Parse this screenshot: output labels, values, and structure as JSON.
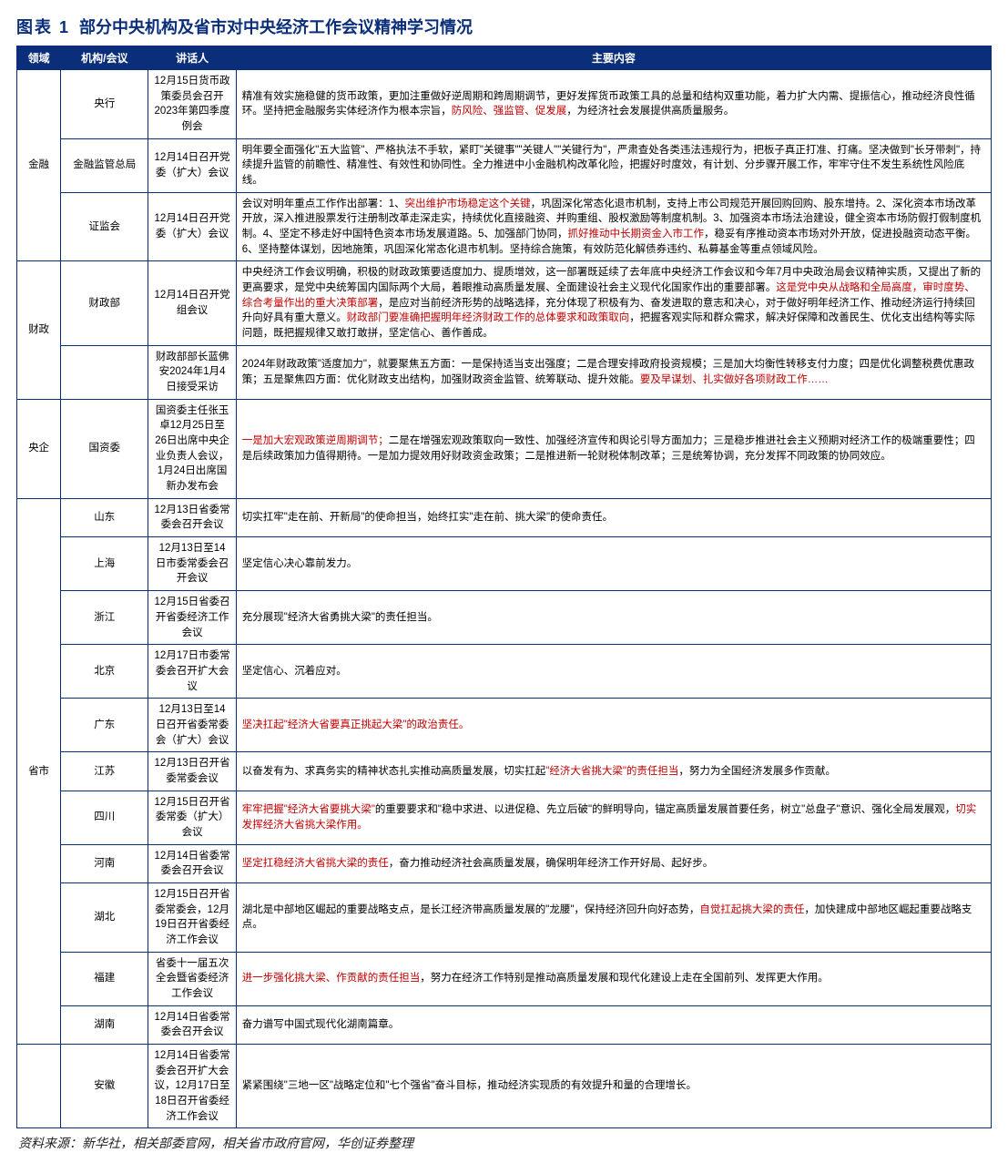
{
  "caption_prefix": "图表 1",
  "caption_title": "部分中央机构及省市对中央经济工作会议精神学习情况",
  "columns": [
    "领域",
    "机构/会议",
    "讲话人",
    "主要内容"
  ],
  "footnote": "资料来源：新华社，相关部委官网，相关省市政府官网，华创证券整理",
  "rows": [
    {
      "domain": "金融",
      "domain_rowspan": 3,
      "org": "央行",
      "speaker": "12月15日货币政策委员会召开2023年第四季度例会",
      "content": "精准有效实施稳健的货币政策，更加注重做好逆周期和跨周期调节，更好发挥货币政策工具的总量和结构双重功能，着力扩大内需、提振信心，推动经济良性循环。坚持把金融服务实体经济作为根本宗旨，<span class='hl'>防风险、强监管、促发展</span>，为经济社会发展提供高质量服务。"
    },
    {
      "org": "金融监管总局",
      "speaker": "12月14日召开党委（扩大）会议",
      "content": "明年要全面强化\"五大监管\"、严格执法不手软，紧盯\"关键事\"\"关键人\"\"关键行为\"，严肃查处各类违法违规行为，把板子真正打准、打痛。坚决做到\"长牙带刺\"，持续提升监管的前瞻性、精准性、有效性和协同性。全力推进中小金融机构改革化险，把握好时度效，有计划、分步骤开展工作，牢牢守住不发生系统性风险底线。"
    },
    {
      "org": "证监会",
      "speaker": "12月14日召开党委（扩大）会议",
      "content": "会议对明年重点工作作出部署：1、<span class='hl'>突出维护市场稳定这个关键</span>，巩固深化常态化退市机制，支持上市公司规范开展回购回购、股东增持。2、深化资本市场改革开放，深入推进股票发行注册制改革走深走实，持续优化直接融资、并购重组、股权激励等制度机制。3、加强资本市场法治建设，健全资本市场防假打假制度机制。4、坚定不移走好中国特色资本市场发展道路。5、加强部门协同，<span class='hl'>抓好推动中长期资金入市工作</span>，稳妥有序推动资本市场对外开放，促进投融资动态平衡。6、坚持整体谋划，因地施策，巩固深化常态化退市机制。坚持综合施策，有效防范化解债券违约、私募基金等重点领域风险。"
    },
    {
      "domain": "财政",
      "domain_rowspan": 2,
      "org": "财政部",
      "speaker": "12月14日召开党组会议",
      "content": "中央经济工作会议明确，积极的财政政策要适度加力、提质增效，这一部署既延续了去年底中央经济工作会议和今年7月中央政治局会议精神实质，又提出了新的更高要求，是党中央统筹国内国际两个大局，着眼推动高质量发展、全面建设社会主义现代化国家作出的重要部署。<span class='hl'>这是党中央从战略和全局高度，审时度势、综合考量作出的重大决策部署</span>，是应对当前经济形势的战略选择，充分体现了积极有为、奋发进取的意志和决心，对于做好明年经济工作、推动经济运行持续回升向好具有重大意义。<span class='hl'>财政部门要准确把握明年经济财政工作的总体要求和政策取向</span>，把握客观实际和群众需求，解决好保障和改善民生、优化支出结构等实际问题，既把握规律又敢打敢拼，坚定信心、善作善成。"
    },
    {
      "org": "",
      "speaker": "财政部部长蓝佛安2024年1月4日接受采访",
      "content": "2024年财政政策\"适度加力\"，就要聚焦五方面：一是保持适当支出强度；二是合理安排政府投资规模；三是加大均衡性转移支付力度；四是优化调整税费优惠政策；五是聚焦四方面：优化财政支出结构，加强财政资金监管、统筹联动、提升效能。<span class='hl'>要及早谋划、扎实做好各项财政工作……</span>"
    },
    {
      "domain": "央企",
      "domain_rowspan": 1,
      "org": "国资委",
      "speaker": "国资委主任张玉卓12月25日至26日出席中央企业负责人会议，1月24日出席国新办发布会",
      "content": "<span class='hl'>一是加大宏观政策逆周期调节；</span>二是在增强宏观政策取向一致性、加强经济宣传和舆论引导方面加力；三是稳步推进社会主义预期对经济工作的极端重要性；四是后续政策加力值得期待。一是加力提效用好财政资金政策；二是推进新一轮财税体制改革；三是统筹协调，充分发挥不同政策的协同效应。"
    },
    {
      "domain": "省市",
      "domain_rowspan": 11,
      "org": "山东",
      "speaker": "12月13日省委常委会召开会议",
      "content": "切实扛牢\"走在前、开新局\"的使命担当，始终扛实\"走在前、挑大梁\"的使命责任。"
    },
    {
      "org": "上海",
      "speaker": "12月13日至14日市委常委会召开会议",
      "content": "坚定信心决心靠前发力。"
    },
    {
      "org": "浙江",
      "speaker": "12月15日省委召开省委经济工作会议",
      "content": "充分展现\"经济大省勇挑大梁\"的责任担当。"
    },
    {
      "org": "北京",
      "speaker": "12月17日市委常委会召开扩大会议",
      "content": "坚定信心、沉着应对。"
    },
    {
      "org": "广东",
      "speaker": "12月13日至14日召开省委常委会（扩大）会议",
      "content": "<span class='hl'>坚决扛起\"经济大省要真正挑起大梁\"的政治责任。</span>"
    },
    {
      "org": "江苏",
      "speaker": "12月13日召开省委常委会议",
      "content": "以奋发有为、求真务实的精神状态扎实推动高质量发展，切实扛起<span class='hl'>\"经济大省挑大梁\"的责任担当</span>，努力为全国经济发展多作贡献。"
    },
    {
      "org": "四川",
      "speaker": "12月15日召开省委常委（扩大）会议",
      "content": "<span class='hl'>牢牢把握\"经济大省要挑大梁\"</span>的重要要求和\"稳中求进、以进促稳、先立后破\"的鲜明导向，锚定高质量发展首要任务，树立\"总盘子\"意识、强化全局发展观，<span class='hl'>切实发挥经济大省挑大梁作用。</span>"
    },
    {
      "org": "河南",
      "speaker": "12月14日省委常委会召开会议",
      "content": "<span class='hl'>坚定扛稳经济大省挑大梁的责任</span>，奋力推动经济社会高质量发展，确保明年经济工作开好局、起好步。"
    },
    {
      "org": "湖北",
      "speaker": "12月15日召开省委常委会，12月19日召开省委经济工作会议",
      "content": "湖北是中部地区崛起的重要战略支点，是长江经济带高质量发展的\"龙腰\"，保持经济回升向好态势，<span class='hl'>自觉扛起挑大梁的责任</span>，加快建成中部地区崛起重要战略支点。"
    },
    {
      "org": "福建",
      "speaker": "省委十一届五次全会暨省委经济工作会议",
      "content": "<span class='hl'>进一步强化挑大梁、作贡献的责任担当</span>，努力在经济工作特别是推动高质量发展和现代化建设上走在全国前列、发挥更大作用。"
    },
    {
      "org": "湖南",
      "speaker": "12月14日省委常委会召开会议",
      "content": "奋力谱写中国式现代化湖南篇章。"
    },
    {
      "domain": "",
      "org": "安徽",
      "speaker": "12月14日省委常委会召开扩大会议，12月17日至18日召开省委经济工作会议",
      "content": "紧紧围绕\"三地一区\"战略定位和\"七个强省\"奋斗目标，推动经济实现质的有效提升和量的合理增长。"
    }
  ]
}
